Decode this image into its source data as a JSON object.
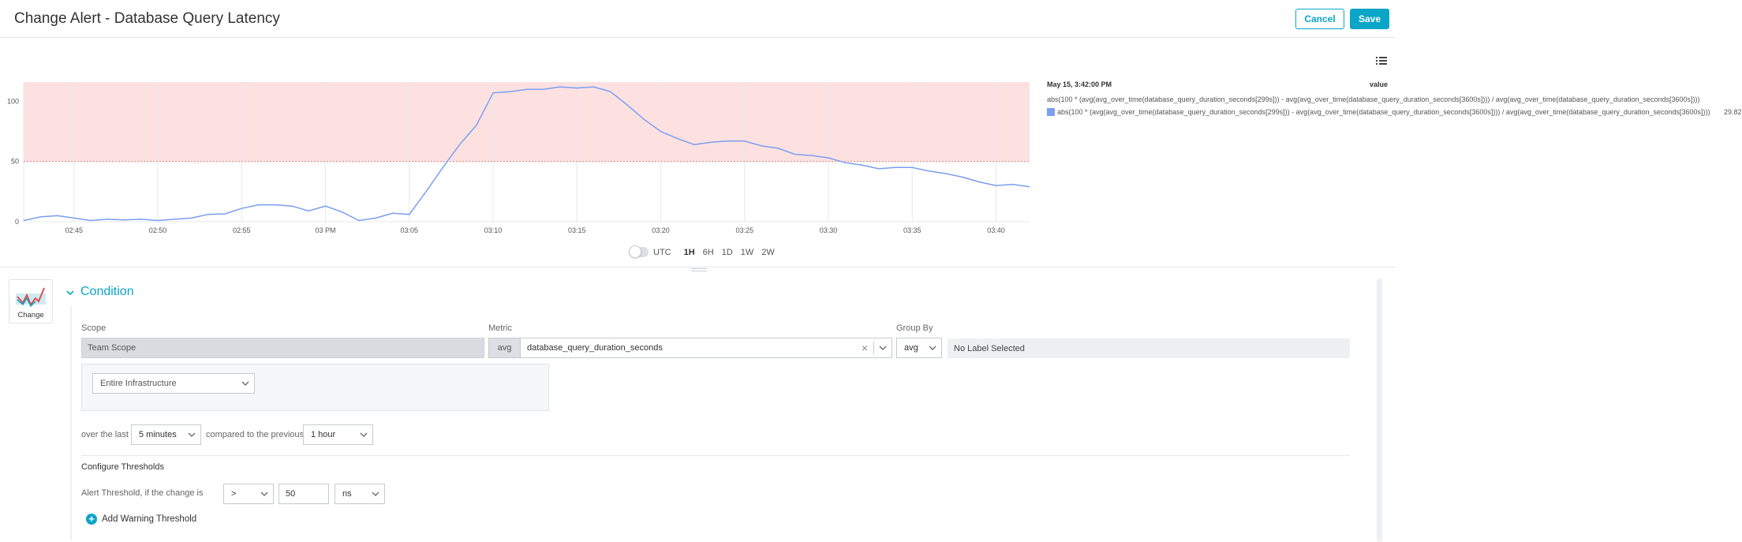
{
  "header": {
    "title": "Change Alert - Database Query Latency",
    "cancel_label": "Cancel",
    "save_label": "Save"
  },
  "chart_data": {
    "type": "line",
    "x": [
      "02:42",
      "02:43",
      "02:44",
      "02:45",
      "02:46",
      "02:47",
      "02:48",
      "02:49",
      "02:50",
      "02:51",
      "02:52",
      "02:53",
      "02:54",
      "02:55",
      "02:56",
      "02:57",
      "02:58",
      "02:59",
      "03:00",
      "03:01",
      "03:02",
      "03:03",
      "03:04",
      "03:05",
      "03:06",
      "03:07",
      "03:08",
      "03:09",
      "03:10",
      "03:11",
      "03:12",
      "03:13",
      "03:14",
      "03:15",
      "03:16",
      "03:17",
      "03:18",
      "03:19",
      "03:20",
      "03:21",
      "03:22",
      "03:23",
      "03:24",
      "03:25",
      "03:26",
      "03:27",
      "03:28",
      "03:29",
      "03:30",
      "03:31",
      "03:32",
      "03:33",
      "03:34",
      "03:35",
      "03:36",
      "03:37",
      "03:38",
      "03:39",
      "03:40",
      "03:41",
      "03:42"
    ],
    "series": [
      {
        "values": [
          1,
          4,
          5,
          3,
          1,
          2,
          1.5,
          2,
          1,
          2,
          3,
          6,
          6.5,
          11,
          14,
          14,
          13,
          9,
          13,
          8,
          1,
          3,
          7,
          6,
          25,
          45,
          64,
          80,
          107,
          108,
          110,
          110,
          112,
          111,
          112,
          108,
          97,
          85,
          75,
          69,
          64,
          66,
          67,
          67,
          63,
          61,
          56,
          55,
          53,
          49,
          47,
          44,
          45,
          45,
          42,
          40,
          37,
          33,
          30,
          31,
          29
        ]
      }
    ],
    "xticks": [
      "02:45",
      "02:50",
      "02:55",
      "03 PM",
      "03:05",
      "03:10",
      "03:15",
      "03:20",
      "03:25",
      "03:30",
      "03:35",
      "03:40"
    ],
    "yticks": [
      "0",
      "50",
      "100"
    ],
    "ylim": [
      0,
      120
    ],
    "threshold": 50,
    "grid": true,
    "legend_position": "right"
  },
  "legend": {
    "timestamp": "May 15, 3:42:00 PM",
    "value_header": "value",
    "expr_full": "abs(100 * (avg(avg_over_time(database_query_duration_seconds[299s])) - avg(avg_over_time(database_query_duration_seconds[3600s]))) / avg(avg_over_time(database_query_duration_seconds[3600s])))",
    "series_label": "abs(100 * (avg(avg_over_time(database_query_duration_seconds[299s])) - avg(avg_over_time(database_query_duration_seconds[3600s]))) / avg(avg_over_time(database_query_duration_seconds[3600s])))",
    "series_value": "29.82",
    "series_color": "#7a9ef0"
  },
  "range": {
    "utc_label": "UTC",
    "options": [
      "1H",
      "6H",
      "1D",
      "1W",
      "2W"
    ],
    "active": "1H"
  },
  "condition": {
    "type_label": "Change",
    "title": "Condition",
    "scope_label": "Scope",
    "scope_value": "Team Scope",
    "metric_label": "Metric",
    "metric_agg": "avg",
    "metric_name": "database_query_duration_seconds",
    "group_by_label": "Group By",
    "group_by_agg": "avg",
    "group_by_value": "No Label Selected",
    "infra_select": "Entire Infrastructure",
    "over_the_last": "over the last",
    "duration1": "5 minutes",
    "compared_to": "compared to the previous",
    "duration2": "1 hour",
    "configure_title": "Configure Thresholds",
    "alert_threshold_label": "Alert Threshold, if the change is",
    "operator": ">",
    "threshold_value": "50",
    "unit": "ns",
    "add_warning": "Add Warning Threshold"
  }
}
